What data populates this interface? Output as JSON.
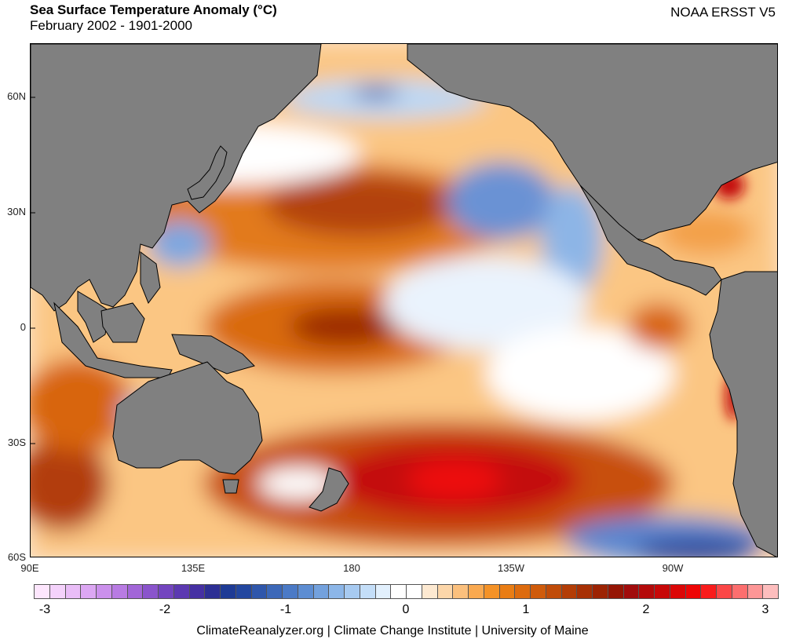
{
  "header": {
    "title": "Sea Surface Temperature Anomaly (°C)",
    "subtitle": "February 2002 - 1901-2000",
    "source": "NOAA ERSST V5"
  },
  "map": {
    "lat_labels": [
      "60N",
      "30N",
      "0",
      "30S",
      "60S"
    ],
    "lon_labels": [
      "90E",
      "135E",
      "180",
      "135W",
      "90W"
    ],
    "land_color": "#808080",
    "ocean_neutral_color": "#ffffff"
  },
  "colorbar": {
    "colors": [
      "#fde6fd",
      "#f4d2fb",
      "#e9bdf7",
      "#dca7f3",
      "#cb90ec",
      "#b87be3",
      "#a266d8",
      "#8a54cc",
      "#7345bf",
      "#5c39b1",
      "#4630a3",
      "#2d2f94",
      "#1e3b95",
      "#23479f",
      "#2f57ab",
      "#3c68b8",
      "#4b7ac6",
      "#5d8dd2",
      "#73a1dd",
      "#8cb6e8",
      "#a7caf1",
      "#c4def8",
      "#e2f0fd",
      "#ffffff",
      "#ffffff",
      "#fde9d1",
      "#fcd6a9",
      "#fbc07d",
      "#f9a950",
      "#f49227",
      "#e97d14",
      "#dd6b0e",
      "#cf5b0b",
      "#c04b08",
      "#b33d06",
      "#a73004",
      "#9c2303",
      "#951504",
      "#a10c0c",
      "#b40a0a",
      "#c70808",
      "#db0707",
      "#ee0606",
      "#f91c1c",
      "#fb4747",
      "#fc6e6e",
      "#fd9696",
      "#fdbdbd"
    ],
    "tick_labels": [
      "-3",
      "-2",
      "-1",
      "0",
      "1",
      "2",
      "3"
    ]
  },
  "footer": "ClimateReanalyzer.org | Climate Change Institute | University of Maine"
}
